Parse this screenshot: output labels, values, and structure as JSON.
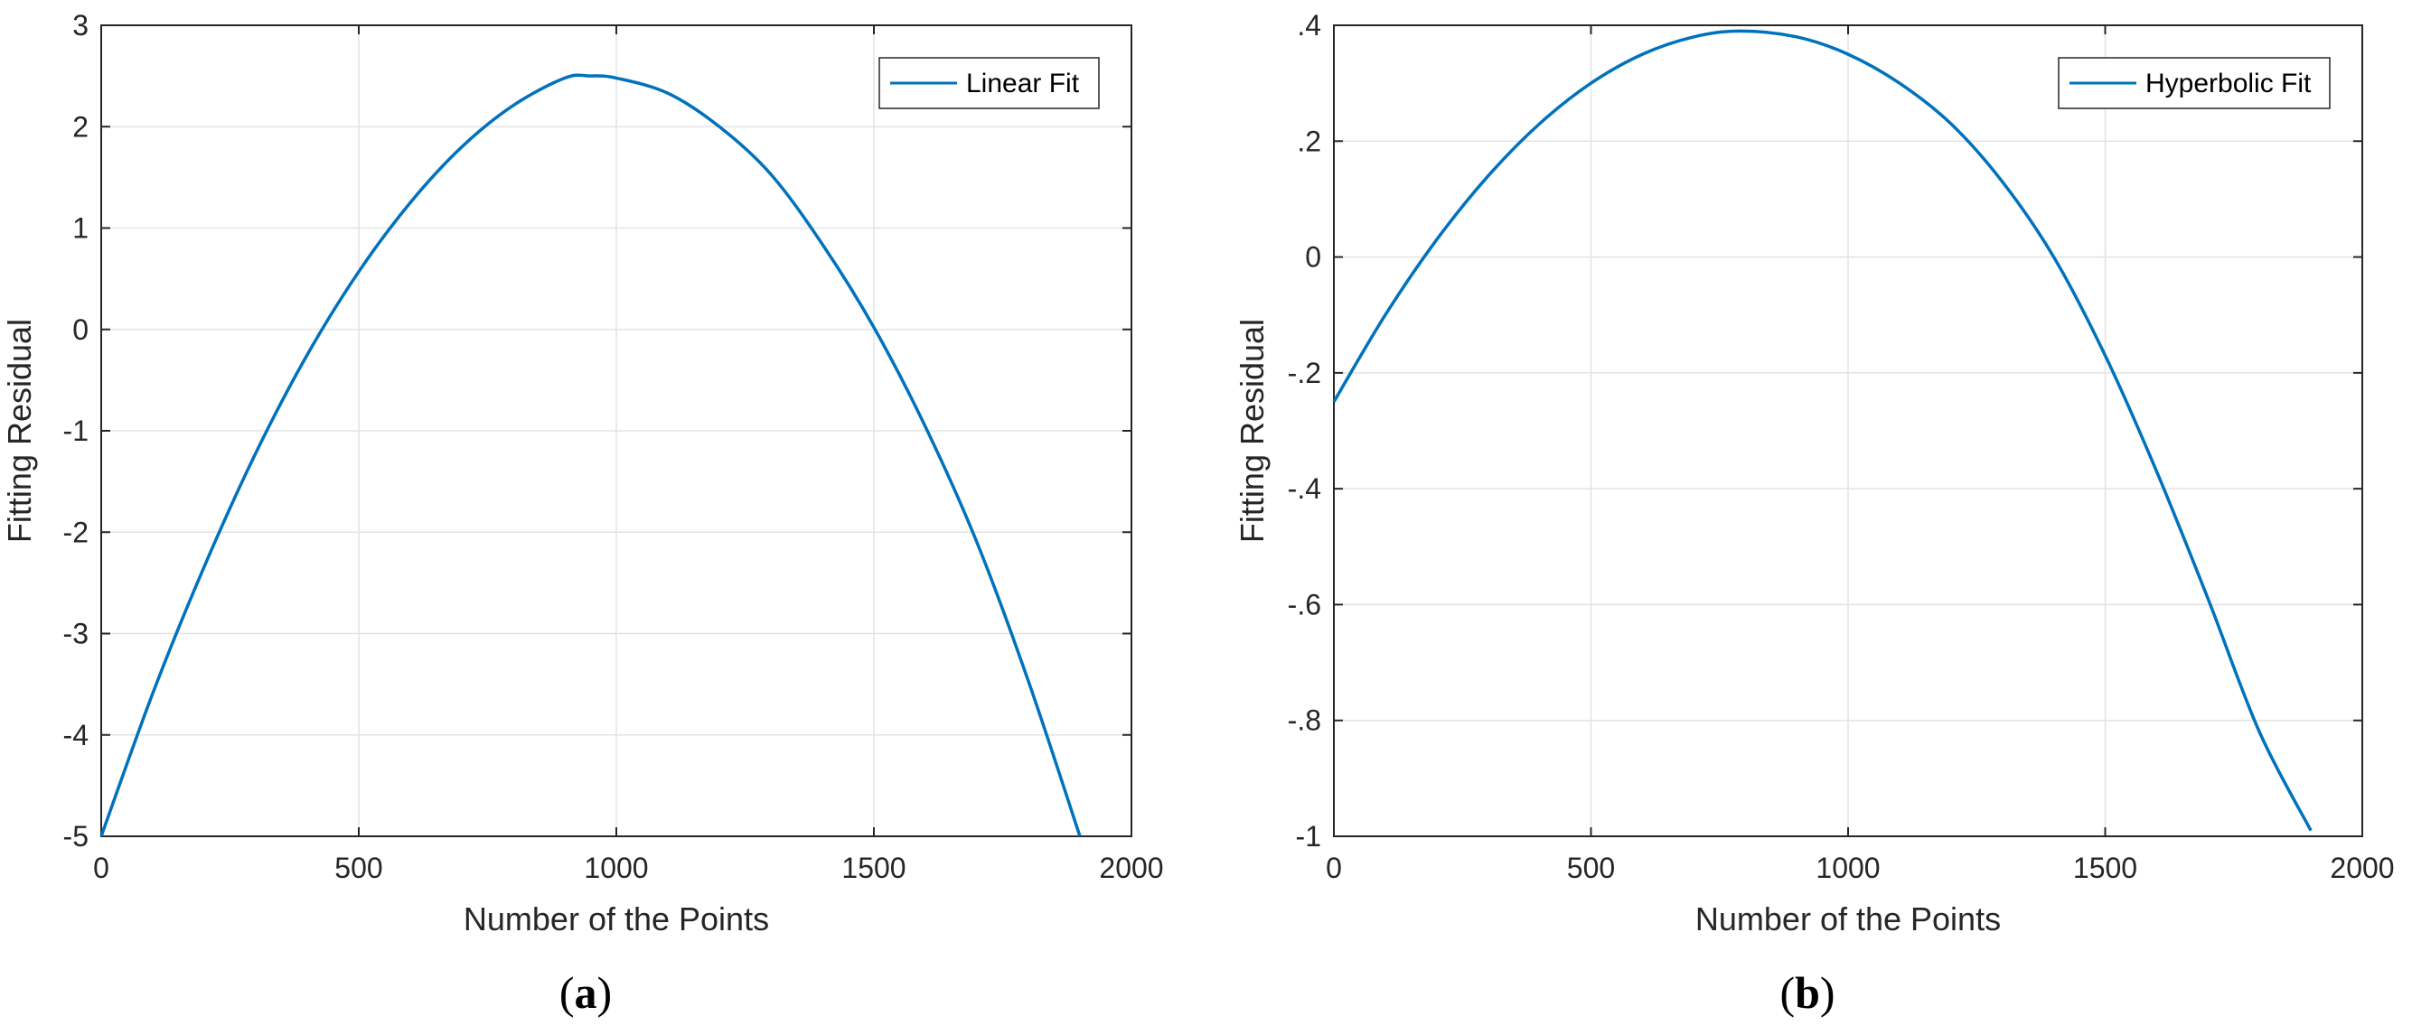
{
  "chart_data": [
    {
      "type": "line",
      "caption": "a",
      "xlabel": "Number of the Points",
      "ylabel": "Fitting Residual",
      "xlim": [
        0,
        2000
      ],
      "ylim": [
        -5,
        3
      ],
      "xticks": [
        0,
        500,
        1000,
        1500,
        2000
      ],
      "yticks": [
        -5,
        -4,
        -3,
        -2,
        -1,
        0,
        1,
        2,
        3
      ],
      "grid": true,
      "legend_position": "top-right",
      "series": [
        {
          "name": "Linear Fit",
          "color": "#0072BD",
          "x": [
            0,
            100,
            200,
            300,
            400,
            500,
            600,
            700,
            800,
            900,
            950,
            1000,
            1100,
            1200,
            1300,
            1400,
            1500,
            1600,
            1700,
            1800,
            1900
          ],
          "y": [
            -5.0,
            -3.59,
            -2.34,
            -1.22,
            -0.25,
            0.57,
            1.25,
            1.8,
            2.21,
            2.48,
            2.5,
            2.48,
            2.33,
            2.0,
            1.53,
            0.84,
            0.02,
            -0.96,
            -2.1,
            -3.47,
            -5.0
          ]
        }
      ]
    },
    {
      "type": "line",
      "caption": "b",
      "xlabel": "Number of the Points",
      "ylabel": "Fitting Residual",
      "xlim": [
        0,
        2000
      ],
      "ylim": [
        -1,
        0.4
      ],
      "xticks": [
        0,
        500,
        1000,
        1500,
        2000
      ],
      "yticks": [
        -1,
        -0.8,
        -0.6,
        -0.4,
        -0.2,
        0,
        0.2,
        0.4
      ],
      "grid": true,
      "legend_position": "top-right",
      "series": [
        {
          "name": "Hyperbolic Fit",
          "color": "#0072BD",
          "x": [
            0,
            100,
            200,
            300,
            400,
            500,
            600,
            700,
            790,
            900,
            1000,
            1100,
            1200,
            1300,
            1400,
            1500,
            1600,
            1700,
            1800,
            1900
          ],
          "y": [
            -0.25,
            -0.1,
            0.03,
            0.14,
            0.23,
            0.3,
            0.35,
            0.38,
            0.39,
            0.38,
            0.35,
            0.3,
            0.23,
            0.13,
            0.0,
            -0.17,
            -0.37,
            -0.59,
            -0.82,
            -0.99
          ]
        }
      ]
    }
  ]
}
